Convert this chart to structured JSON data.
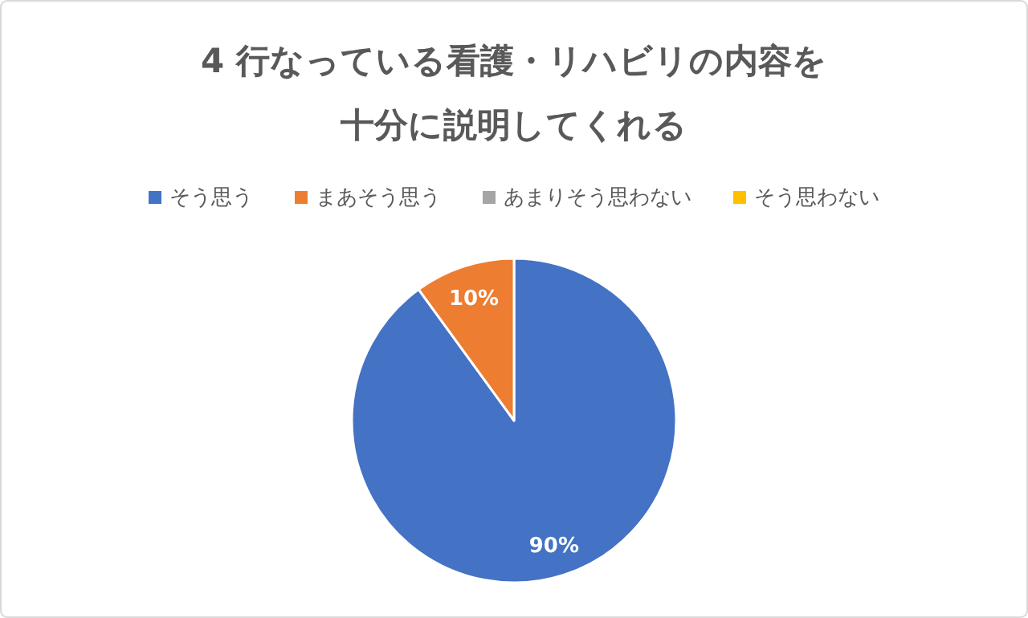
{
  "chart_data": {
    "type": "pie",
    "title": "4 行なっている看護・リハビリの内容を十分に説明してくれる",
    "categories": [
      "そう思う",
      "まあそう思う",
      "あまりそう思わない",
      "そう思わない"
    ],
    "values": [
      90,
      10,
      0,
      0
    ],
    "colors": [
      "#4472c4",
      "#ed7d31",
      "#a5a5a5",
      "#ffc000"
    ],
    "value_labels": [
      "90%",
      "10%",
      null,
      null
    ],
    "legend": "top"
  }
}
